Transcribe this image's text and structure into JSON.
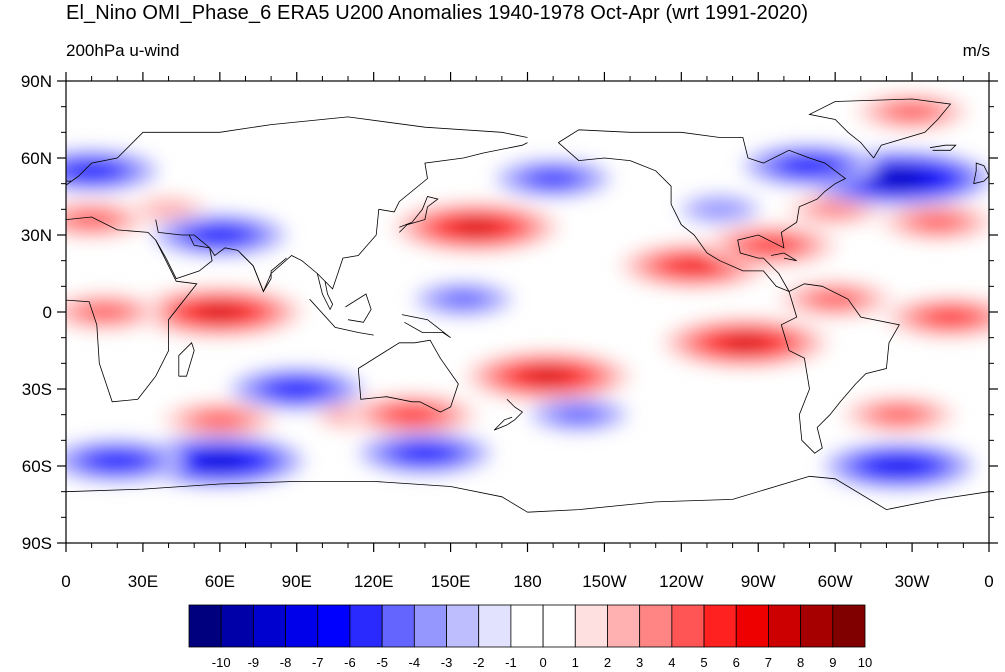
{
  "title": "El_Nino OMI_Phase_6 ERA5 U200 Anomalies 1940-1978 Oct-Apr (wrt 1991-2020)",
  "left_string": "200hPa u-wind",
  "right_string": "m/s",
  "map": {
    "projection": "cylindrical-equidistant",
    "center_lon": 180,
    "lon_range": [
      0,
      360
    ],
    "lat_range": [
      -90,
      90
    ],
    "lat_ticks": [
      "90N",
      "60N",
      "30N",
      "0",
      "30S",
      "60S",
      "90S"
    ],
    "lon_ticks": [
      "0",
      "30E",
      "60E",
      "90E",
      "120E",
      "150E",
      "180",
      "150W",
      "120W",
      "90W",
      "60W",
      "30W",
      "0"
    ]
  },
  "colorbar": {
    "labels": [
      "-10",
      "-9",
      "-8",
      "-7",
      "-6",
      "-5",
      "-4",
      "-3",
      "-2",
      "-1",
      "0",
      "1",
      "2",
      "3",
      "4",
      "5",
      "6",
      "7",
      "8",
      "9",
      "10"
    ],
    "colors": [
      "#00007f",
      "#0000a8",
      "#0000cf",
      "#0000ea",
      "#0000ff",
      "#2a2aff",
      "#6464ff",
      "#9696ff",
      "#bebeff",
      "#e2e2ff",
      "#ffffff",
      "#ffffff",
      "#ffe0e0",
      "#ffb0b0",
      "#ff8585",
      "#ff5555",
      "#ff2020",
      "#ee0000",
      "#cc0000",
      "#a60000",
      "#800000"
    ]
  },
  "chart_data": {
    "type": "heatmap",
    "variable": "200hPa u-wind",
    "units": "m/s",
    "levels": [
      -10,
      -9,
      -8,
      -7,
      -6,
      -5,
      -4,
      -3,
      -2,
      -1,
      0,
      1,
      2,
      3,
      4,
      5,
      6,
      7,
      8,
      9,
      10
    ],
    "anomaly_centers": [
      {
        "lon": 60,
        "lat": 0,
        "value": 7
      },
      {
        "lon": 15,
        "lat": 0,
        "value": 4
      },
      {
        "lon": 160,
        "lat": 33,
        "value": 7
      },
      {
        "lon": 10,
        "lat": 36,
        "value": 4
      },
      {
        "lon": 245,
        "lat": 18,
        "value": 6
      },
      {
        "lon": 275,
        "lat": 26,
        "value": 5
      },
      {
        "lon": 265,
        "lat": -12,
        "value": 7
      },
      {
        "lon": 300,
        "lat": 5,
        "value": 4
      },
      {
        "lon": 345,
        "lat": -2,
        "value": 5
      },
      {
        "lon": 340,
        "lat": 35,
        "value": 4
      },
      {
        "lon": 188,
        "lat": -25,
        "value": 7
      },
      {
        "lon": 60,
        "lat": -42,
        "value": 4
      },
      {
        "lon": 115,
        "lat": -40,
        "value": 3
      },
      {
        "lon": 325,
        "lat": -40,
        "value": 4
      },
      {
        "lon": 135,
        "lat": -40,
        "value": 5
      },
      {
        "lon": 300,
        "lat": 40,
        "value": 3
      },
      {
        "lon": 40,
        "lat": 40,
        "value": 2
      },
      {
        "lon": 330,
        "lat": 78,
        "value": 4
      },
      {
        "lon": 10,
        "lat": 55,
        "value": -5
      },
      {
        "lon": 325,
        "lat": 52,
        "value": -8
      },
      {
        "lon": 290,
        "lat": 57,
        "value": -5
      },
      {
        "lon": 60,
        "lat": 30,
        "value": -5
      },
      {
        "lon": 190,
        "lat": 52,
        "value": -4
      },
      {
        "lon": 60,
        "lat": -58,
        "value": -7
      },
      {
        "lon": 20,
        "lat": -58,
        "value": -5
      },
      {
        "lon": 140,
        "lat": -55,
        "value": -5
      },
      {
        "lon": 325,
        "lat": -60,
        "value": -6
      },
      {
        "lon": 90,
        "lat": -30,
        "value": -5
      },
      {
        "lon": 155,
        "lat": 5,
        "value": -3
      },
      {
        "lon": 200,
        "lat": -40,
        "value": -3
      },
      {
        "lon": 255,
        "lat": 40,
        "value": -2
      }
    ]
  }
}
